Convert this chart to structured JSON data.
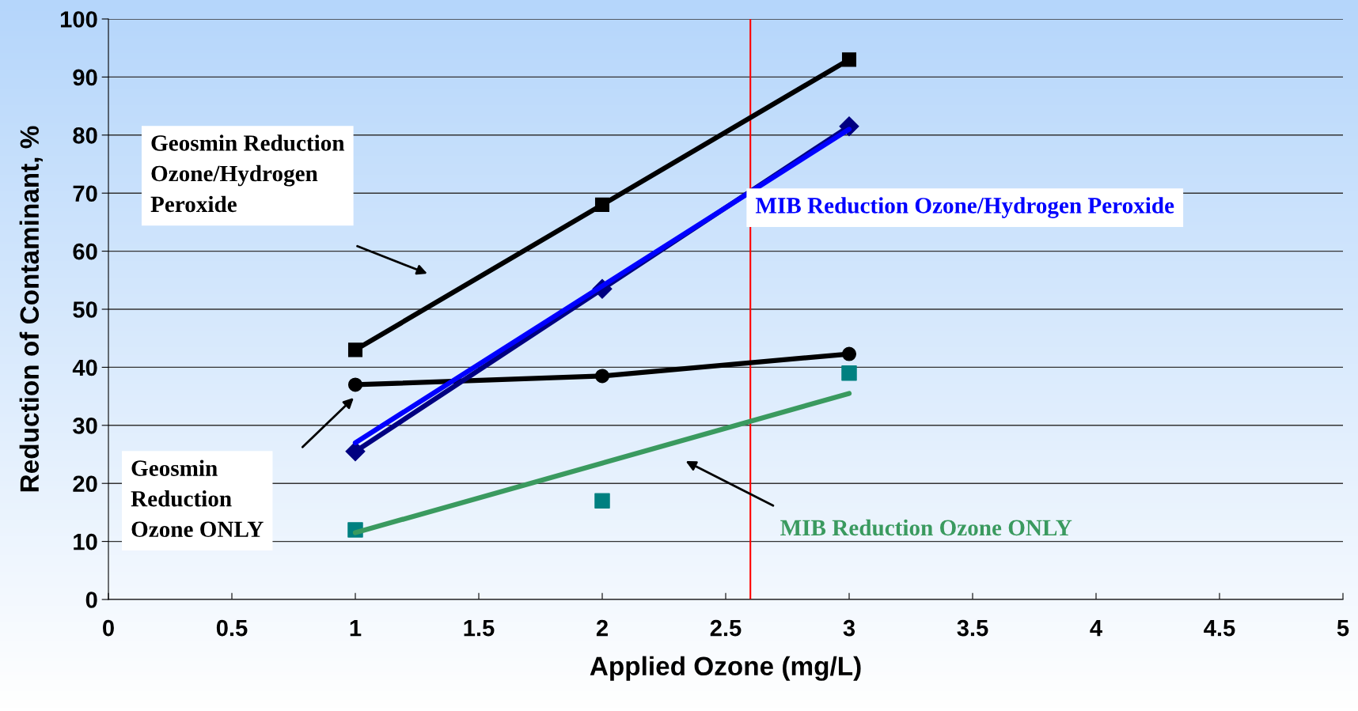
{
  "chart_data": {
    "type": "line",
    "xlabel": "Applied Ozone (mg/L)",
    "ylabel": "Reduction of Contaminant, %",
    "xlim": [
      0,
      5
    ],
    "xticks": [
      0,
      0.5,
      1,
      1.5,
      2,
      2.5,
      3,
      3.5,
      4,
      4.5,
      5
    ],
    "ylim": [
      0,
      100
    ],
    "yticks": [
      0,
      10,
      20,
      30,
      40,
      50,
      60,
      70,
      80,
      90,
      100
    ],
    "grid": "y",
    "legend": false,
    "series": [
      {
        "color": "#000000",
        "marker": "square",
        "x": [
          1,
          2,
          3
        ],
        "values": [
          43,
          68,
          93
        ]
      },
      {
        "color": "#000000",
        "marker": "circle",
        "x": [
          1,
          2,
          3
        ],
        "values": [
          37,
          38.5,
          42.3
        ]
      },
      {
        "color": "#000080",
        "marker": "diamond",
        "x": [
          1,
          2,
          3
        ],
        "values": [
          25.5,
          53.5,
          81.5
        ]
      },
      {
        "name": "MIB Reduction Ozone/Hydrogen Peroxide",
        "color": "#0000ff",
        "marker": "none",
        "x": [
          1,
          3
        ],
        "values": [
          27,
          81
        ]
      },
      {
        "type": "scatter",
        "color": "#008080",
        "marker": "square",
        "x": [
          1,
          2,
          3
        ],
        "values": [
          12,
          17,
          39
        ]
      },
      {
        "name": "MIB Reduction Ozone ONLY",
        "color": "#3a9a5f",
        "marker": "none",
        "x": [
          1,
          3
        ],
        "values": [
          11.5,
          35.5
        ]
      }
    ],
    "annotations": [
      "Geosmin Reduction\nOzone/Hydrogen\nPeroxide",
      "Geosmin\nReduction\nOzone ONLY"
    ],
    "ref_lines": [
      {
        "axis": "x",
        "value": 2.6,
        "color": "#ff0000"
      }
    ]
  }
}
